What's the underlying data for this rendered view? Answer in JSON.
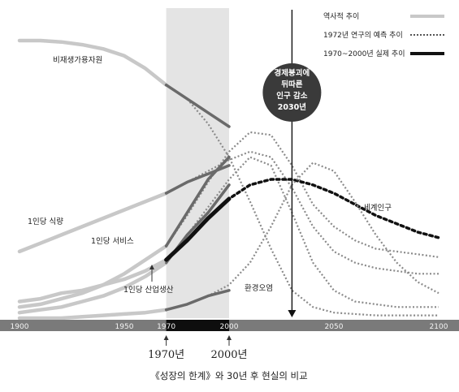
{
  "chart_data": {
    "type": "line",
    "caption": "《성장의 한계》와 30년 후 현실의 비교",
    "x_ticks": [
      "1900",
      "1950",
      "1970",
      "2000",
      "2050",
      "2100"
    ],
    "xlim": [
      1900,
      2100
    ],
    "highlight_period": [
      1970,
      2000
    ],
    "year_markers": [
      "1970년",
      "2000년"
    ],
    "vline_year": 2030,
    "callout": [
      "경제붕괴에",
      "뒤따른",
      "인구 감소",
      "2030년"
    ],
    "legend": {
      "placement": "top-right",
      "entries": [
        {
          "style": "historical",
          "label": "역사적 추이"
        },
        {
          "style": "projection",
          "label": "1972년 연구의 예측 추이"
        },
        {
          "style": "actual",
          "label": "1970~2000년 실제 추이"
        }
      ]
    },
    "label_texts": {
      "resources": "비재생가용자원",
      "food": "1인당 식량",
      "services": "1인당 서비스",
      "industry": "1인당 산업생산",
      "population": "세계인구",
      "pollution": "환경오염"
    },
    "series": [
      {
        "key": "resources",
        "historical": {
          "x": [
            1900,
            1910,
            1920,
            1930,
            1940,
            1950,
            1960,
            1970
          ],
          "y": [
            1.0,
            1.0,
            0.995,
            0.985,
            0.97,
            0.945,
            0.9,
            0.84
          ]
        },
        "projection": {
          "x": [
            1970,
            1980,
            1990,
            2000,
            2010,
            2020,
            2030,
            2040,
            2050,
            2060,
            2070,
            2080,
            2090,
            2100
          ],
          "y": [
            0.84,
            0.79,
            0.7,
            0.58,
            0.42,
            0.25,
            0.1,
            0.04,
            0.02,
            0.015,
            0.01,
            0.01,
            0.01,
            0.01
          ]
        },
        "actual": {
          "x": [
            1970,
            1980,
            1990,
            2000
          ],
          "y": [
            0.84,
            0.79,
            0.74,
            0.69
          ]
        }
      },
      {
        "key": "food",
        "historical": {
          "x": [
            1900,
            1910,
            1920,
            1930,
            1940,
            1950,
            1960,
            1970
          ],
          "y": [
            0.24,
            0.27,
            0.3,
            0.33,
            0.36,
            0.39,
            0.42,
            0.45
          ]
        },
        "projection": {
          "x": [
            1970,
            1980,
            1990,
            2000,
            2010,
            2020,
            2030,
            2040,
            2050,
            2060,
            2070,
            2080,
            2090,
            2100
          ],
          "y": [
            0.45,
            0.49,
            0.53,
            0.57,
            0.6,
            0.58,
            0.47,
            0.33,
            0.24,
            0.2,
            0.18,
            0.17,
            0.16,
            0.16
          ]
        },
        "actual": {
          "x": [
            1970,
            1980,
            1990,
            2000
          ],
          "y": [
            0.45,
            0.49,
            0.52,
            0.55
          ]
        }
      },
      {
        "key": "services",
        "historical": {
          "x": [
            1900,
            1910,
            1920,
            1930,
            1940,
            1950,
            1960,
            1970
          ],
          "y": [
            0.04,
            0.05,
            0.07,
            0.09,
            0.12,
            0.16,
            0.21,
            0.26
          ]
        },
        "projection": {
          "x": [
            1970,
            1980,
            1990,
            2000,
            2010,
            2020,
            2030,
            2040,
            2050,
            2060,
            2070,
            2080,
            2090,
            2100
          ],
          "y": [
            0.26,
            0.37,
            0.49,
            0.6,
            0.67,
            0.66,
            0.55,
            0.41,
            0.33,
            0.28,
            0.25,
            0.24,
            0.23,
            0.22
          ]
        },
        "actual": {
          "x": [
            1970,
            1980,
            1990,
            2000
          ],
          "y": [
            0.26,
            0.38,
            0.5,
            0.58
          ]
        }
      },
      {
        "key": "industry",
        "historical": {
          "x": [
            1900,
            1910,
            1920,
            1930,
            1940,
            1950,
            1960,
            1970
          ],
          "y": [
            0.02,
            0.03,
            0.04,
            0.06,
            0.08,
            0.11,
            0.15,
            0.2
          ]
        },
        "projection": {
          "x": [
            1970,
            1980,
            1990,
            2000,
            2010,
            2020,
            2030,
            2040,
            2050,
            2060,
            2070,
            2080,
            2090,
            2100
          ],
          "y": [
            0.2,
            0.3,
            0.4,
            0.5,
            0.58,
            0.55,
            0.38,
            0.2,
            0.1,
            0.06,
            0.05,
            0.04,
            0.04,
            0.04
          ]
        },
        "actual": {
          "x": [
            1970,
            1980,
            1990,
            2000
          ],
          "y": [
            0.2,
            0.3,
            0.38,
            0.48
          ]
        }
      },
      {
        "key": "population",
        "historical": {
          "x": [
            1900,
            1910,
            1920,
            1930,
            1940,
            1950,
            1960,
            1970
          ],
          "y": [
            0.06,
            0.07,
            0.09,
            0.1,
            0.12,
            0.14,
            0.17,
            0.21
          ]
        },
        "projection": {
          "x": [
            1970,
            1980,
            1990,
            2000,
            2010,
            2020,
            2030,
            2040,
            2050,
            2060,
            2070,
            2080,
            2090,
            2100
          ],
          "y": [
            0.21,
            0.28,
            0.36,
            0.43,
            0.48,
            0.5,
            0.5,
            0.48,
            0.45,
            0.41,
            0.37,
            0.34,
            0.31,
            0.29
          ]
        },
        "actual": {
          "x": [
            1970,
            1980,
            1990,
            2000
          ],
          "y": [
            0.21,
            0.28,
            0.36,
            0.43
          ]
        }
      },
      {
        "key": "pollution",
        "historical": {
          "x": [
            1900,
            1910,
            1920,
            1930,
            1940,
            1950,
            1960,
            1970
          ],
          "y": [
            0.0,
            0.0,
            0.0,
            0.005,
            0.01,
            0.015,
            0.02,
            0.03
          ]
        },
        "projection": {
          "x": [
            1970,
            1980,
            1990,
            2000,
            2010,
            2020,
            2030,
            2040,
            2050,
            2060,
            2070,
            2080,
            2090,
            2100
          ],
          "y": [
            0.03,
            0.05,
            0.08,
            0.12,
            0.2,
            0.33,
            0.48,
            0.56,
            0.53,
            0.42,
            0.3,
            0.2,
            0.13,
            0.09
          ]
        },
        "actual": {
          "x": [
            1970,
            1980,
            1990,
            2000
          ],
          "y": [
            0.03,
            0.05,
            0.08,
            0.1
          ]
        }
      }
    ]
  }
}
